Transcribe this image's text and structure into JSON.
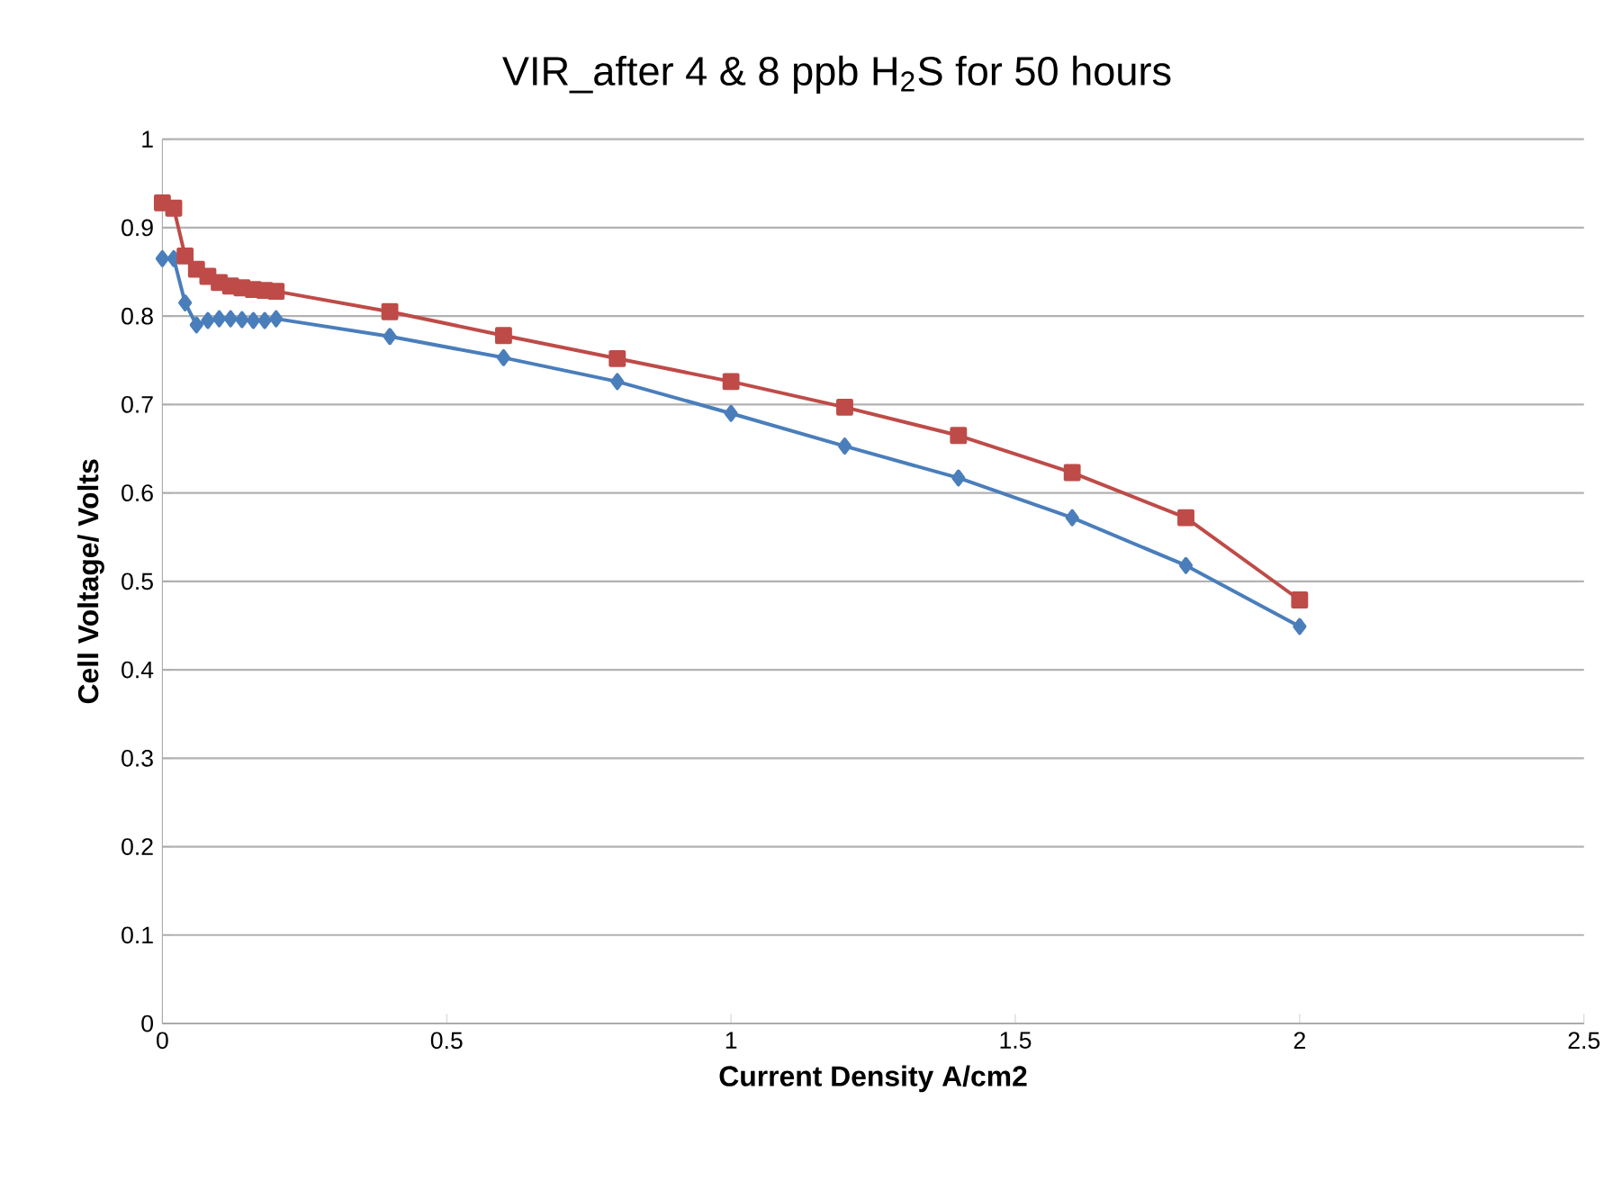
{
  "chart_data": {
    "type": "line",
    "title": "VIR_after 4 & 8 ppb H$_{2}$S for 50 hours",
    "xlabel": "Current Density A/cm2",
    "ylabel": "Cell Voltage/ Volts",
    "x": [
      0,
      0.02,
      0.04,
      0.06,
      0.08,
      0.1,
      0.12,
      0.14,
      0.16,
      0.18,
      0.2,
      0.4,
      0.6,
      0.8,
      1.0,
      1.2,
      1.4,
      1.6,
      1.8,
      2.0
    ],
    "series": [
      {
        "color": "#4a7ebb",
        "marker": "diamond",
        "values": [
          0.865,
          0.865,
          0.815,
          0.79,
          0.795,
          0.797,
          0.797,
          0.796,
          0.795,
          0.795,
          0.797,
          0.777,
          0.753,
          0.726,
          0.69,
          0.653,
          0.617,
          0.572,
          0.518,
          0.449
        ]
      },
      {
        "color": "#be4b48",
        "marker": "square",
        "values": [
          0.928,
          0.922,
          0.868,
          0.853,
          0.845,
          0.838,
          0.834,
          0.832,
          0.83,
          0.829,
          0.828,
          0.805,
          0.778,
          0.752,
          0.726,
          0.697,
          0.665,
          0.623,
          0.572,
          0.479
        ]
      }
    ],
    "xlim": [
      0,
      2.5
    ],
    "xticks": [
      0,
      0.5,
      1,
      1.5,
      2,
      2.5
    ],
    "ylim": [
      0,
      1
    ],
    "yticks": [
      0,
      0.1,
      0.2,
      0.3,
      0.4,
      0.5,
      0.6,
      0.7,
      0.8,
      0.9,
      1
    ],
    "grid": "y",
    "line_style": "solid"
  }
}
